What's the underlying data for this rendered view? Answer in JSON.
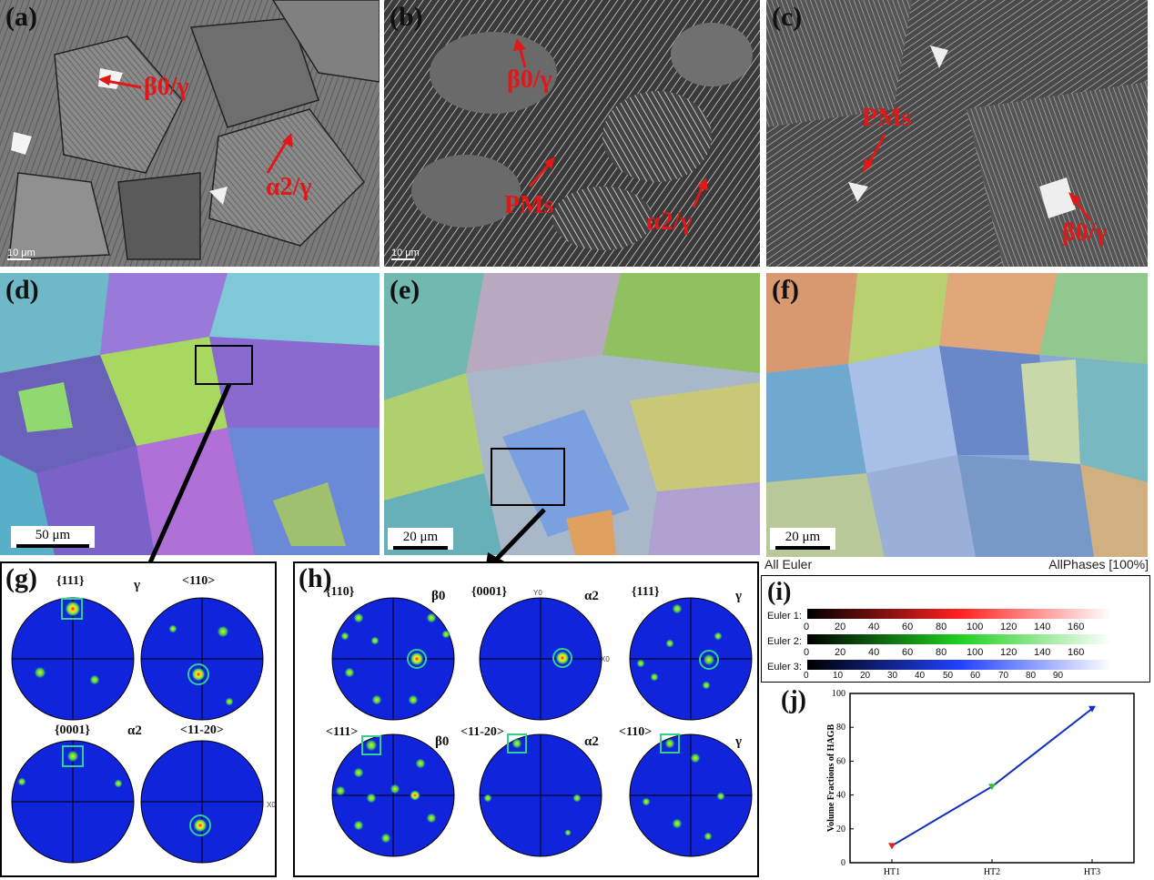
{
  "panels": {
    "a": {
      "label": "(a)",
      "scale": "10 μm",
      "ann1": "β0/γ",
      "ann2": "α2/γ"
    },
    "b": {
      "label": "(b)",
      "scale": "10 μm",
      "ann1": "β0/γ",
      "ann2": "PMs",
      "ann3": "α2/γ"
    },
    "c": {
      "label": "(c)",
      "scale": "10 μm",
      "ann1": "PMs",
      "ann2": "β0/γ"
    },
    "d": {
      "label": "(d)",
      "scale": "50 μm"
    },
    "e": {
      "label": "(e)",
      "scale": "20 μm"
    },
    "f": {
      "label": "(f)",
      "scale": "20 μm"
    },
    "g": {
      "label": "(g)",
      "pf1": "{111}",
      "pf2": "<110>",
      "sym1": "γ",
      "pf3": "{0001}",
      "pf4": "<11-20>",
      "sym2": "α2",
      "axis": "X0"
    },
    "h": {
      "label": "(h)",
      "pf1": "{110}",
      "sym1": "β0",
      "pf2": "{0001}",
      "y0": "Y0",
      "sym2": "α2",
      "x0": "X0",
      "pf3": "{111}",
      "sym3": "γ",
      "pf4": "<111>",
      "sym4": "β0",
      "pf5": "<11-20>",
      "sym5": "α2",
      "pf6": "<110>",
      "sym6": "γ"
    },
    "i": {
      "label": "(i)",
      "header_left": "All Euler",
      "header_right": "AllPhases [100%]",
      "rows": [
        {
          "name": "Euler 1:",
          "ticks": [
            "0",
            "20",
            "40",
            "60",
            "80",
            "100",
            "120",
            "140",
            "160"
          ],
          "color": "#ff3030"
        },
        {
          "name": "Euler 2:",
          "ticks": [
            "0",
            "20",
            "40",
            "60",
            "80",
            "100",
            "120",
            "140",
            "160"
          ],
          "color": "#30d030"
        },
        {
          "name": "Euler 3:",
          "ticks": [
            "0",
            "10",
            "20",
            "30",
            "40",
            "50",
            "60",
            "70",
            "80",
            "90"
          ],
          "color": "#3050ff"
        }
      ]
    },
    "j": {
      "label": "(j)"
    }
  },
  "chart_data": {
    "type": "line",
    "categories": [
      "HT1",
      "HT2",
      "HT3"
    ],
    "values": [
      10,
      45,
      91
    ],
    "ylabel": "Volume Fractions of HAGB",
    "xlabel": "",
    "ylim": [
      0,
      100
    ],
    "yticks": [
      "0",
      "20",
      "40",
      "60",
      "80",
      "100"
    ],
    "line_color": "#1030c0",
    "marker_colors": [
      "#e02020",
      "#30c030",
      "#1030c0"
    ]
  }
}
